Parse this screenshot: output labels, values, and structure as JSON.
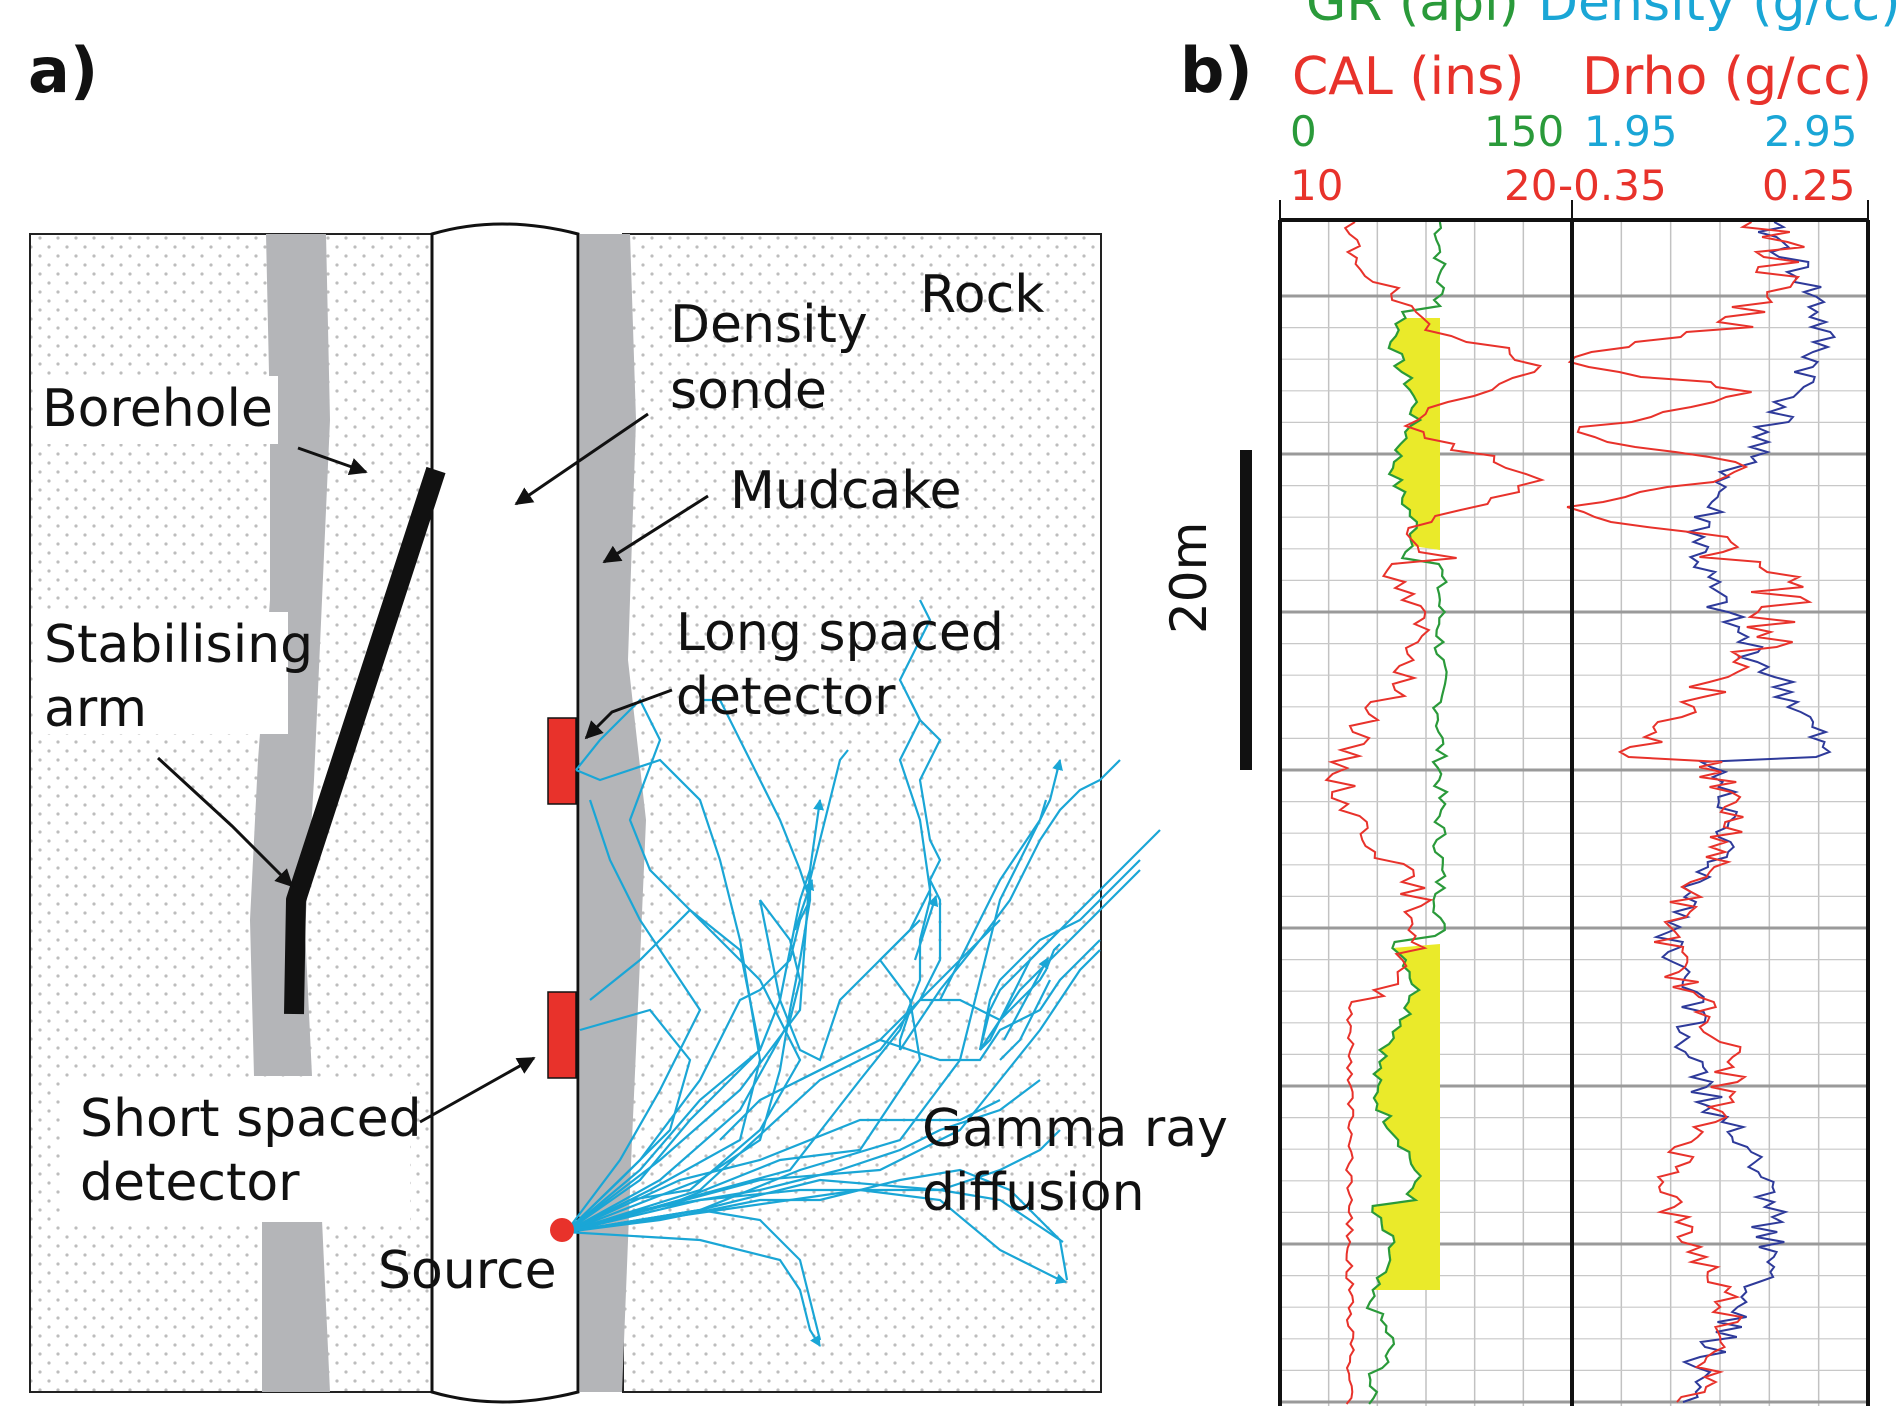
{
  "panel_a": {
    "letter": "a)",
    "labels": {
      "rock": "Rock",
      "density_sonde_1": "Density",
      "density_sonde_2": "sonde",
      "borehole": "Borehole",
      "mudcake": "Mudcake",
      "stabilising_1": "Stabilising",
      "stabilising_2": "arm",
      "long_1": "Long spaced",
      "long_2": "detector",
      "short_1": "Short spaced",
      "short_2": "detector",
      "gamma_1": "Gamma ray",
      "gamma_2": "diffusion",
      "source": "Source"
    },
    "colors": {
      "mudcake": "#b4b5b8",
      "detector": "#e8322b",
      "gamma_rays": "#1aa6d6",
      "arm": "#111111",
      "rock_dots": "#b9b9b9"
    }
  },
  "panel_b": {
    "letter": "b)",
    "scale_bar_label": "20m",
    "headers": {
      "gr": "GR (api)",
      "density": "Density (g/cc)",
      "cal": "CAL (ins)",
      "drho": "Drho (g/cc)"
    },
    "scales": {
      "gr_min": "0",
      "gr_max": "150",
      "density_min": "1.95",
      "density_max": "2.95",
      "cal_min": "10",
      "cal_max": "20",
      "drho_min": "-0.35",
      "drho_max": "0.25"
    },
    "colors": {
      "gr": "#2a9a3a",
      "density": "#1aa6d6",
      "cal": "#e8322b",
      "drho": "#e8322b",
      "density_curve": "#2e3a9a",
      "shade": "#eaea2a",
      "grid": "#b8b8b8"
    }
  }
}
